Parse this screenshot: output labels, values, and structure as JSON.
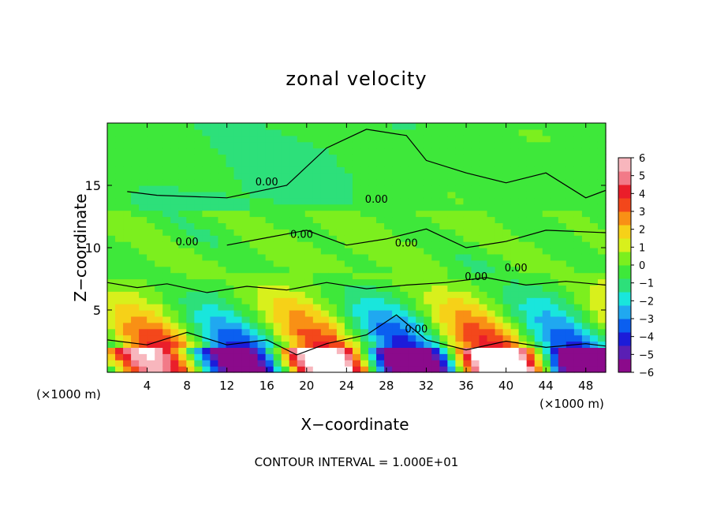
{
  "chart_data": {
    "type": "heatmap",
    "title": "zonal velocity",
    "xlabel": "X−coordinate",
    "ylabel": "Z−coordinate",
    "x_unit": "(×1000 m)",
    "xlim": [
      0,
      50
    ],
    "ylim": [
      0,
      20
    ],
    "x_ticks": [
      "4",
      "8",
      "12",
      "16",
      "20",
      "24",
      "28",
      "32",
      "36",
      "40",
      "44",
      "48"
    ],
    "y_ticks": [
      "5",
      "10",
      "15"
    ],
    "colorbar": {
      "range": [
        -6,
        6
      ],
      "ticks": [
        "6",
        "5",
        "4",
        "3",
        "2",
        "1",
        "0",
        "−1",
        "−2",
        "−3",
        "−4",
        "−5",
        "−6"
      ],
      "colors": [
        "#8b0a8b",
        "#5a1fb4",
        "#1c1cd9",
        "#0b5ff0",
        "#20a8f0",
        "#19e6dc",
        "#2de07a",
        "#3ee83a",
        "#7cef1e",
        "#d8f01c",
        "#f6d118",
        "#f99015",
        "#f3471b",
        "#ea1e2a",
        "#f27a88",
        "#f8b6bd"
      ]
    },
    "contour_labels": [
      "0.00",
      "0.00",
      "0.00",
      "0.00",
      "0.00",
      "0.00",
      "0.00",
      "0.00"
    ],
    "footer": "CONTOUR INTERVAL = 1.000E+01"
  }
}
